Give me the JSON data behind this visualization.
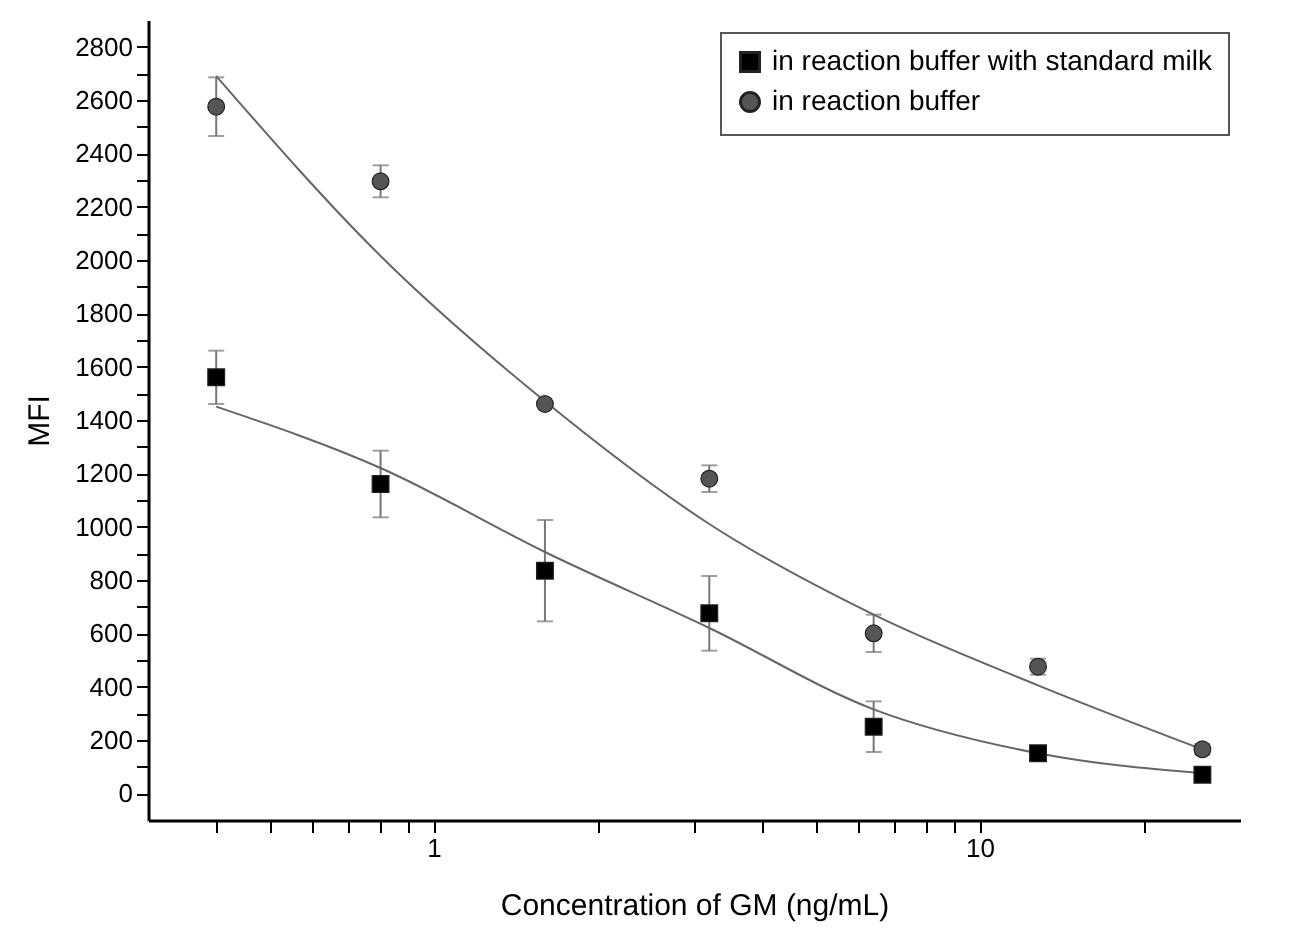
{
  "chart_data": {
    "type": "scatter",
    "xlabel": "Concentration of GM (ng/mL)",
    "ylabel": "MFI",
    "log": "x",
    "legend": "top right",
    "grid": false,
    "x": [
      0.4,
      0.8,
      1.6,
      3.2,
      6.4,
      12.8,
      25.6
    ],
    "xlim": [
      0.3,
      30
    ],
    "xticks": [
      {
        "value": 0.4,
        "label": null
      },
      {
        "value": 0.5,
        "label": null
      },
      {
        "value": 0.6,
        "label": null
      },
      {
        "value": 0.7,
        "label": null
      },
      {
        "value": 0.8,
        "label": null
      },
      {
        "value": 0.9,
        "label": null
      },
      1,
      {
        "value": 2,
        "label": null
      },
      {
        "value": 3,
        "label": null
      },
      {
        "value": 4,
        "label": null
      },
      {
        "value": 5,
        "label": null
      },
      {
        "value": 6,
        "label": null
      },
      {
        "value": 7,
        "label": null
      },
      {
        "value": 8,
        "label": null
      },
      {
        "value": 9,
        "label": null
      },
      10,
      {
        "value": 20,
        "label": null
      }
    ],
    "ylim": [
      -100,
      2900
    ],
    "yticks": [
      0,
      {
        "value": 100,
        "label": null
      },
      200,
      {
        "value": 300,
        "label": null
      },
      400,
      {
        "value": 500,
        "label": null
      },
      600,
      {
        "value": 700,
        "label": null
      },
      800,
      {
        "value": 900,
        "label": null
      },
      1000,
      {
        "value": 1100,
        "label": null
      },
      1200,
      {
        "value": 1300,
        "label": null
      },
      1400,
      {
        "value": 1500,
        "label": null
      },
      1600,
      {
        "value": 1700,
        "label": null
      },
      1800,
      {
        "value": 1900,
        "label": null
      },
      2000,
      {
        "value": 2100,
        "label": null
      },
      2200,
      {
        "value": 2300,
        "label": null
      },
      2400,
      {
        "value": 2500,
        "label": null
      },
      2600,
      {
        "value": 2700,
        "label": null
      },
      2800
    ],
    "series": [
      {
        "name": "in reaction buffer with standard milk",
        "marker": "square",
        "color": "#000000",
        "values": [
          1560,
          1160,
          835,
          675,
          250,
          150,
          70
        ],
        "errors": [
          100,
          125,
          190,
          140,
          95,
          null,
          null
        ]
      },
      {
        "name": "in reaction buffer",
        "marker": "circle",
        "color": "#555555",
        "values": [
          2575,
          2295,
          1460,
          1180,
          600,
          475,
          165
        ],
        "errors": [
          110,
          60,
          null,
          50,
          70,
          30,
          20
        ]
      },
      {
        "type": "line",
        "marker": "none",
        "color": "#666666",
        "x": [
          0.4,
          0.8,
          1.6,
          3.2,
          6.4,
          12.8,
          25.6
        ],
        "values": [
          1450,
          1220,
          905,
          620,
          315,
          150,
          75
        ]
      },
      {
        "type": "line",
        "marker": "none",
        "color": "#666666",
        "x": [
          0.4,
          0.8,
          1.6,
          3.2,
          6.4,
          12.8,
          25.6
        ],
        "values": [
          2690,
          2015,
          1470,
          1010,
          670,
          405,
          165
        ]
      }
    ]
  }
}
